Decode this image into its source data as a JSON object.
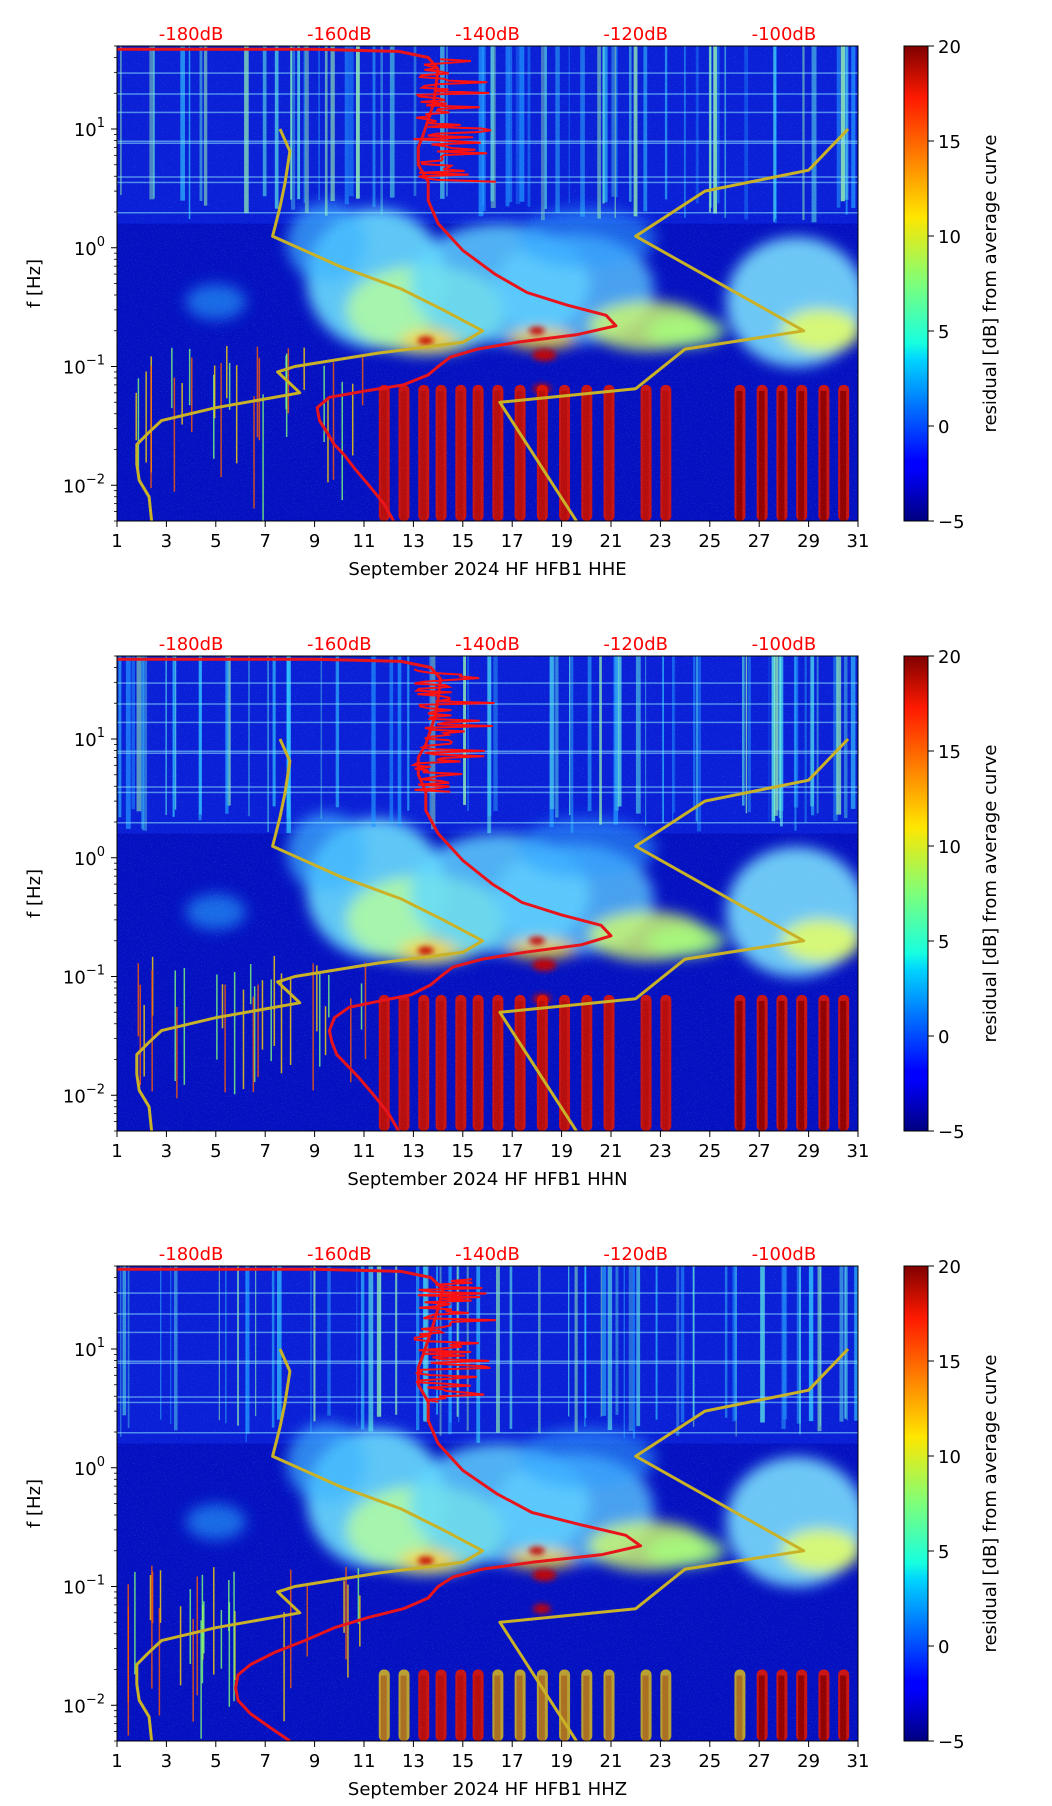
{
  "chart_data": [
    {
      "type": "heatmap",
      "title": "",
      "xlabel": "September 2024 HF HFB1  HHE",
      "ylabel": "f [Hz]",
      "xlim": [
        1,
        31
      ],
      "ylim": [
        0.005,
        50
      ],
      "yscale": "log",
      "xticks": [
        1,
        3,
        5,
        7,
        9,
        11,
        13,
        15,
        17,
        19,
        21,
        23,
        25,
        27,
        29,
        31
      ],
      "yticks": [
        {
          "value": 0.01,
          "base": "10",
          "exp": "−2"
        },
        {
          "value": 0.1,
          "base": "10",
          "exp": "−1"
        },
        {
          "value": 1,
          "base": "10",
          "exp": "0"
        },
        {
          "value": 10,
          "base": "10",
          "exp": "1"
        }
      ],
      "colorbar": {
        "label": "residual [dB] from average curve",
        "min": -5,
        "max": 20,
        "ticks": [
          "−5",
          "0",
          "5",
          "10",
          "15",
          "20"
        ],
        "tick_values": [
          -5,
          0,
          5,
          10,
          15,
          20
        ],
        "colormap": "jet"
      },
      "db_scale": {
        "labels": [
          "-180dB",
          "-160dB",
          "-140dB",
          "-120dB",
          "-100dB"
        ],
        "day_positions": [
          5,
          9,
          13,
          17,
          21
        ],
        "color": "#ff0000"
      },
      "series": [
        {
          "name": "average spectrum",
          "color": "#e8141c",
          "points": [
            [
              12.2,
              0.005
            ],
            [
              11.8,
              0.007
            ],
            [
              11.2,
              0.01
            ],
            [
              10.6,
              0.014
            ],
            [
              10.2,
              0.018
            ],
            [
              9.8,
              0.022
            ],
            [
              9.5,
              0.028
            ],
            [
              9.2,
              0.035
            ],
            [
              9.1,
              0.045
            ],
            [
              9.6,
              0.055
            ],
            [
              11.0,
              0.062
            ],
            [
              12.6,
              0.07
            ],
            [
              13.6,
              0.085
            ],
            [
              14.0,
              0.1
            ],
            [
              14.5,
              0.12
            ],
            [
              15.6,
              0.14
            ],
            [
              17.2,
              0.16
            ],
            [
              19.6,
              0.185
            ],
            [
              21.2,
              0.22
            ],
            [
              20.8,
              0.27
            ],
            [
              19.2,
              0.33
            ],
            [
              17.6,
              0.42
            ],
            [
              16.3,
              0.6
            ],
            [
              15.0,
              0.95
            ],
            [
              14.0,
              1.6
            ],
            [
              13.6,
              2.5
            ],
            [
              13.6,
              3.6
            ],
            [
              13.2,
              5
            ],
            [
              13.2,
              7
            ],
            [
              13.4,
              9
            ],
            [
              13.6,
              12
            ],
            [
              13.8,
              16
            ],
            [
              13.9,
              22
            ],
            [
              14.0,
              32
            ],
            [
              13.6,
              40
            ],
            [
              12.4,
              45
            ],
            [
              9.0,
              47
            ],
            [
              1.0,
              47
            ]
          ]
        },
        {
          "name": "NLNM",
          "color": "#c9b227",
          "points": [
            [
              2.4,
              0.005
            ],
            [
              2.3,
              0.008
            ],
            [
              1.9,
              0.011
            ],
            [
              1.8,
              0.015
            ],
            [
              1.8,
              0.022
            ],
            [
              2.3,
              0.028
            ],
            [
              2.8,
              0.035
            ],
            [
              5.0,
              0.045
            ],
            [
              8.4,
              0.06
            ],
            [
              8.0,
              0.072
            ],
            [
              7.5,
              0.09
            ],
            [
              8.2,
              0.1
            ],
            [
              11.6,
              0.13
            ],
            [
              15.0,
              0.16
            ],
            [
              15.8,
              0.2
            ],
            [
              14.2,
              0.3
            ],
            [
              12.5,
              0.45
            ],
            [
              10.0,
              0.7
            ],
            [
              7.3,
              1.25
            ],
            [
              7.6,
              2.2
            ],
            [
              7.8,
              3.5
            ],
            [
              8.0,
              6.5
            ],
            [
              7.6,
              10
            ]
          ]
        },
        {
          "name": "NHNM",
          "color": "#c9b227",
          "points": [
            [
              19.6,
              0.005
            ],
            [
              16.5,
              0.05
            ],
            [
              22.0,
              0.065
            ],
            [
              24.0,
              0.14
            ],
            [
              28.8,
              0.2
            ],
            [
              22.0,
              1.25
            ],
            [
              24.8,
              3.0
            ],
            [
              29.0,
              4.5
            ],
            [
              30.6,
              10
            ]
          ]
        }
      ]
    },
    {
      "type": "heatmap",
      "title": "",
      "xlabel": "September 2024 HF HFB1  HHN",
      "ylabel": "f [Hz]",
      "xlim": [
        1,
        31
      ],
      "ylim": [
        0.005,
        50
      ],
      "yscale": "log",
      "xticks": [
        1,
        3,
        5,
        7,
        9,
        11,
        13,
        15,
        17,
        19,
        21,
        23,
        25,
        27,
        29,
        31
      ],
      "yticks": [
        {
          "value": 0.01,
          "base": "10",
          "exp": "−2"
        },
        {
          "value": 0.1,
          "base": "10",
          "exp": "−1"
        },
        {
          "value": 1,
          "base": "10",
          "exp": "0"
        },
        {
          "value": 10,
          "base": "10",
          "exp": "1"
        }
      ],
      "colorbar": {
        "label": "residual [dB] from average curve",
        "min": -5,
        "max": 20,
        "ticks": [
          "−5",
          "0",
          "5",
          "10",
          "15",
          "20"
        ],
        "tick_values": [
          -5,
          0,
          5,
          10,
          15,
          20
        ],
        "colormap": "jet"
      },
      "db_scale": {
        "labels": [
          "-180dB",
          "-160dB",
          "-140dB",
          "-120dB",
          "-100dB"
        ],
        "day_positions": [
          5,
          9,
          13,
          17,
          21
        ],
        "color": "#ff0000"
      },
      "series": [
        {
          "name": "average spectrum",
          "color": "#e8141c",
          "points": [
            [
              12.4,
              0.005
            ],
            [
              12.0,
              0.007
            ],
            [
              11.4,
              0.01
            ],
            [
              10.8,
              0.014
            ],
            [
              10.3,
              0.018
            ],
            [
              9.9,
              0.022
            ],
            [
              9.7,
              0.028
            ],
            [
              9.6,
              0.035
            ],
            [
              9.8,
              0.045
            ],
            [
              10.4,
              0.055
            ],
            [
              11.6,
              0.062
            ],
            [
              12.9,
              0.07
            ],
            [
              13.7,
              0.085
            ],
            [
              14.1,
              0.1
            ],
            [
              14.6,
              0.12
            ],
            [
              15.8,
              0.14
            ],
            [
              17.5,
              0.16
            ],
            [
              19.8,
              0.185
            ],
            [
              21.0,
              0.22
            ],
            [
              20.6,
              0.27
            ],
            [
              19.0,
              0.33
            ],
            [
              17.4,
              0.42
            ],
            [
              16.2,
              0.6
            ],
            [
              15.0,
              0.95
            ],
            [
              14.0,
              1.6
            ],
            [
              13.5,
              2.5
            ],
            [
              13.5,
              3.6
            ],
            [
              13.2,
              5
            ],
            [
              13.2,
              7
            ],
            [
              13.5,
              9
            ],
            [
              13.7,
              12
            ],
            [
              13.9,
              16
            ],
            [
              14.0,
              22
            ],
            [
              14.1,
              32
            ],
            [
              13.7,
              40
            ],
            [
              12.5,
              45
            ],
            [
              9.0,
              47
            ],
            [
              1.0,
              47
            ]
          ]
        },
        {
          "name": "NLNM",
          "color": "#c9b227",
          "points": [
            [
              2.4,
              0.005
            ],
            [
              2.3,
              0.008
            ],
            [
              1.9,
              0.011
            ],
            [
              1.8,
              0.015
            ],
            [
              1.8,
              0.022
            ],
            [
              2.3,
              0.028
            ],
            [
              2.8,
              0.035
            ],
            [
              5.0,
              0.045
            ],
            [
              8.4,
              0.06
            ],
            [
              8.0,
              0.072
            ],
            [
              7.5,
              0.09
            ],
            [
              8.2,
              0.1
            ],
            [
              11.6,
              0.13
            ],
            [
              15.0,
              0.16
            ],
            [
              15.8,
              0.2
            ],
            [
              14.2,
              0.3
            ],
            [
              12.5,
              0.45
            ],
            [
              10.0,
              0.7
            ],
            [
              7.3,
              1.25
            ],
            [
              7.6,
              2.2
            ],
            [
              7.8,
              3.5
            ],
            [
              8.0,
              6.5
            ],
            [
              7.6,
              10
            ]
          ]
        },
        {
          "name": "NHNM",
          "color": "#c9b227",
          "points": [
            [
              19.6,
              0.005
            ],
            [
              16.5,
              0.05
            ],
            [
              22.0,
              0.065
            ],
            [
              24.0,
              0.14
            ],
            [
              28.8,
              0.2
            ],
            [
              22.0,
              1.25
            ],
            [
              24.8,
              3.0
            ],
            [
              29.0,
              4.5
            ],
            [
              30.6,
              10
            ]
          ]
        }
      ]
    },
    {
      "type": "heatmap",
      "title": "",
      "xlabel": "September 2024 HF HFB1  HHZ",
      "ylabel": "f [Hz]",
      "xlim": [
        1,
        31
      ],
      "ylim": [
        0.005,
        50
      ],
      "yscale": "log",
      "xticks": [
        1,
        3,
        5,
        7,
        9,
        11,
        13,
        15,
        17,
        19,
        21,
        23,
        25,
        27,
        29,
        31
      ],
      "yticks": [
        {
          "value": 0.01,
          "base": "10",
          "exp": "−2"
        },
        {
          "value": 0.1,
          "base": "10",
          "exp": "−1"
        },
        {
          "value": 1,
          "base": "10",
          "exp": "0"
        },
        {
          "value": 10,
          "base": "10",
          "exp": "1"
        }
      ],
      "colorbar": {
        "label": "residual [dB] from average curve",
        "min": -5,
        "max": 20,
        "ticks": [
          "−5",
          "0",
          "5",
          "10",
          "15",
          "20"
        ],
        "tick_values": [
          -5,
          0,
          5,
          10,
          15,
          20
        ],
        "colormap": "jet"
      },
      "db_scale": {
        "labels": [
          "-180dB",
          "-160dB",
          "-140dB",
          "-120dB",
          "-100dB"
        ],
        "day_positions": [
          5,
          9,
          13,
          17,
          21
        ],
        "color": "#ff0000"
      },
      "series": [
        {
          "name": "average spectrum",
          "color": "#e8141c",
          "points": [
            [
              8.0,
              0.005
            ],
            [
              7.2,
              0.0065
            ],
            [
              6.4,
              0.0085
            ],
            [
              5.9,
              0.011
            ],
            [
              5.8,
              0.014
            ],
            [
              5.9,
              0.018
            ],
            [
              6.4,
              0.022
            ],
            [
              7.4,
              0.028
            ],
            [
              8.6,
              0.035
            ],
            [
              9.8,
              0.045
            ],
            [
              11.2,
              0.055
            ],
            [
              12.6,
              0.065
            ],
            [
              13.6,
              0.08
            ],
            [
              14.0,
              0.1
            ],
            [
              14.6,
              0.12
            ],
            [
              15.8,
              0.14
            ],
            [
              17.8,
              0.16
            ],
            [
              20.6,
              0.185
            ],
            [
              22.2,
              0.22
            ],
            [
              21.6,
              0.27
            ],
            [
              19.8,
              0.33
            ],
            [
              17.8,
              0.42
            ],
            [
              16.4,
              0.6
            ],
            [
              15.0,
              0.95
            ],
            [
              14.0,
              1.6
            ],
            [
              13.6,
              2.5
            ],
            [
              13.6,
              3.6
            ],
            [
              13.2,
              5
            ],
            [
              13.2,
              7
            ],
            [
              13.4,
              9
            ],
            [
              13.6,
              12
            ],
            [
              13.8,
              16
            ],
            [
              14.0,
              22
            ],
            [
              14.2,
              32
            ],
            [
              13.7,
              40
            ],
            [
              12.5,
              45
            ],
            [
              9.0,
              47
            ],
            [
              1.0,
              47
            ]
          ]
        },
        {
          "name": "NLNM",
          "color": "#c9b227",
          "points": [
            [
              2.4,
              0.005
            ],
            [
              2.3,
              0.008
            ],
            [
              1.9,
              0.011
            ],
            [
              1.8,
              0.015
            ],
            [
              1.8,
              0.022
            ],
            [
              2.3,
              0.028
            ],
            [
              2.8,
              0.035
            ],
            [
              5.0,
              0.045
            ],
            [
              8.4,
              0.06
            ],
            [
              8.0,
              0.072
            ],
            [
              7.5,
              0.09
            ],
            [
              8.2,
              0.1
            ],
            [
              11.6,
              0.13
            ],
            [
              15.0,
              0.16
            ],
            [
              15.8,
              0.2
            ],
            [
              14.2,
              0.3
            ],
            [
              12.5,
              0.45
            ],
            [
              10.0,
              0.7
            ],
            [
              7.3,
              1.25
            ],
            [
              7.6,
              2.2
            ],
            [
              7.8,
              3.5
            ],
            [
              8.0,
              6.5
            ],
            [
              7.6,
              10
            ]
          ]
        },
        {
          "name": "NHNM",
          "color": "#c9b227",
          "points": [
            [
              19.6,
              0.005
            ],
            [
              16.5,
              0.05
            ],
            [
              22.0,
              0.065
            ],
            [
              24.0,
              0.14
            ],
            [
              28.8,
              0.2
            ],
            [
              22.0,
              1.25
            ],
            [
              24.8,
              3.0
            ],
            [
              29.0,
              4.5
            ],
            [
              30.6,
              10
            ]
          ]
        }
      ]
    }
  ]
}
